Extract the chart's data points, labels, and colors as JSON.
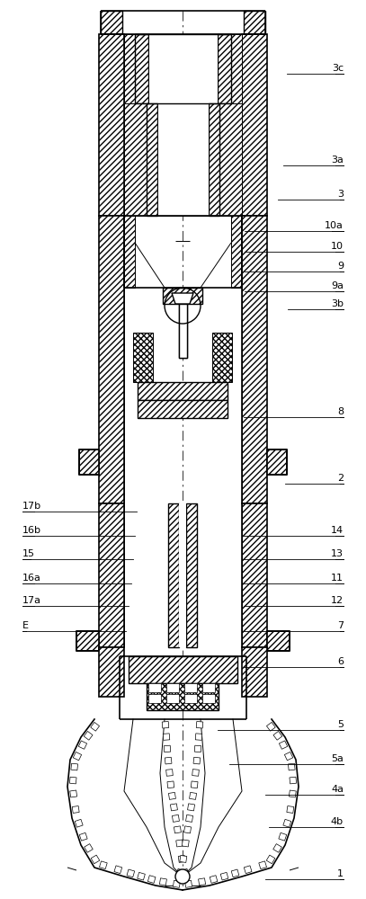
{
  "figsize": [
    4.07,
    10.0
  ],
  "dpi": 100,
  "bg_color": "#ffffff",
  "lc": "#000000",
  "right_labels": [
    {
      "text": "1",
      "yn": 0.972
    },
    {
      "text": "4b",
      "yn": 0.914
    },
    {
      "text": "4a",
      "yn": 0.878
    },
    {
      "text": "5a",
      "yn": 0.844
    },
    {
      "text": "5",
      "yn": 0.806
    },
    {
      "text": "6",
      "yn": 0.736
    },
    {
      "text": "7",
      "yn": 0.696
    },
    {
      "text": "12",
      "yn": 0.668
    },
    {
      "text": "11",
      "yn": 0.643
    },
    {
      "text": "13",
      "yn": 0.616
    },
    {
      "text": "14",
      "yn": 0.59
    },
    {
      "text": "2",
      "yn": 0.532
    },
    {
      "text": "8",
      "yn": 0.458
    },
    {
      "text": "3b",
      "yn": 0.338
    },
    {
      "text": "9a",
      "yn": 0.318
    },
    {
      "text": "9",
      "yn": 0.296
    },
    {
      "text": "10",
      "yn": 0.274
    },
    {
      "text": "10a",
      "yn": 0.251
    },
    {
      "text": "3",
      "yn": 0.216
    },
    {
      "text": "3a",
      "yn": 0.178
    },
    {
      "text": "3c",
      "yn": 0.076
    }
  ],
  "left_labels": [
    {
      "text": "E",
      "yn": 0.696
    },
    {
      "text": "17a",
      "yn": 0.668
    },
    {
      "text": "16a",
      "yn": 0.643
    },
    {
      "text": "15",
      "yn": 0.616
    },
    {
      "text": "16b",
      "yn": 0.59
    },
    {
      "text": "17b",
      "yn": 0.563
    }
  ]
}
